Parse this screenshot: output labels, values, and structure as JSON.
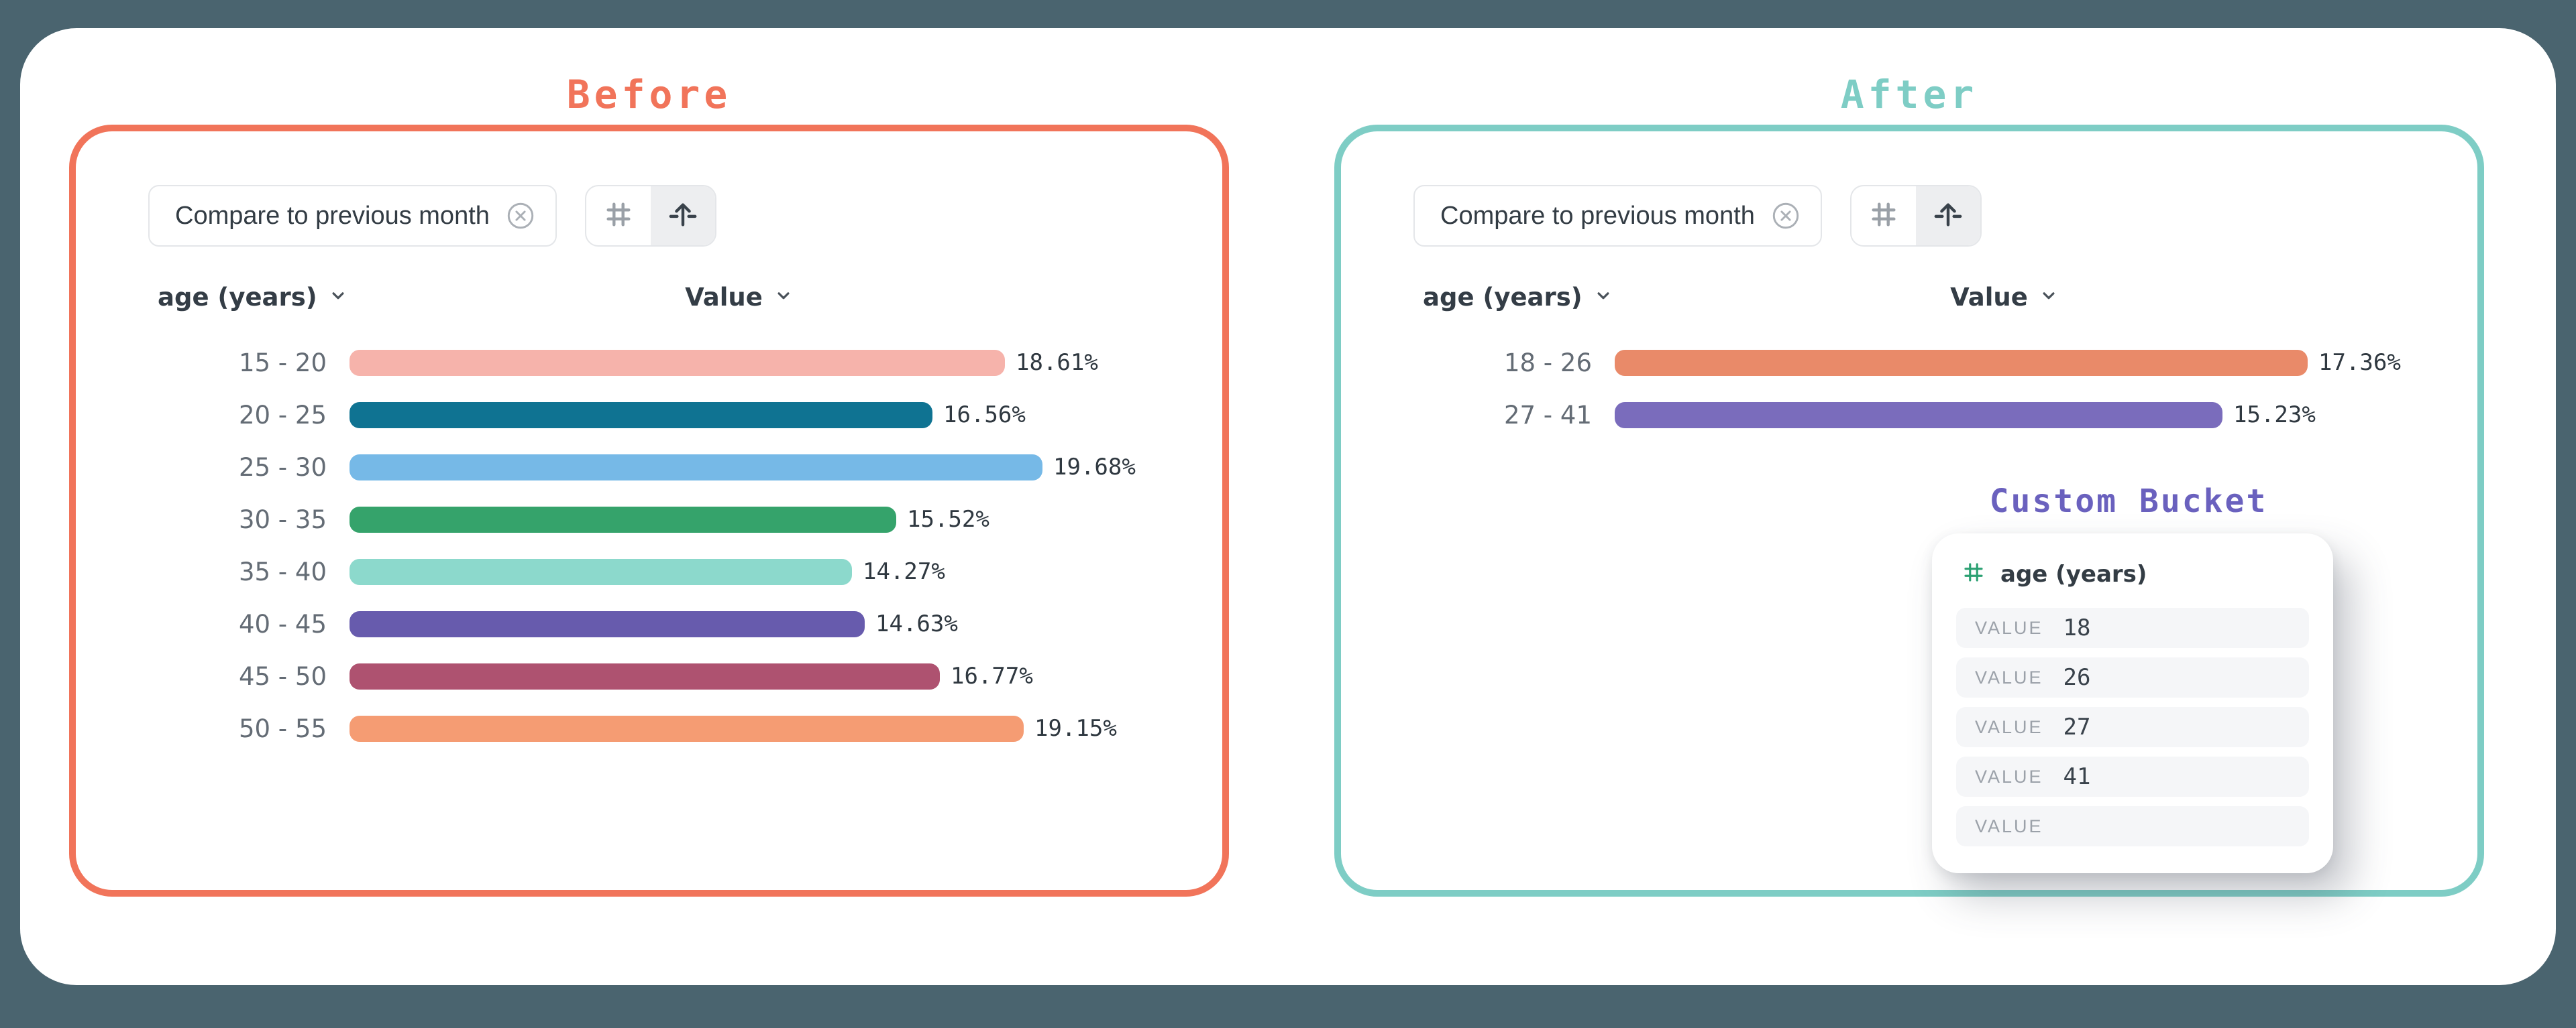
{
  "page": {
    "background": "#4A646F",
    "surface_color": "#FFFFFF"
  },
  "before": {
    "title": "Before",
    "accent": "#F1745A",
    "chip": {
      "label": "Compare to previous month",
      "close_icon": "circle-x-icon"
    },
    "toolbar": {
      "buttons": [
        {
          "icon": "hash-icon",
          "active": false
        },
        {
          "icon": "arrow-up-from-bar-icon",
          "active": true
        }
      ]
    },
    "columns": {
      "category": "age (years)",
      "value": "Value"
    },
    "chart": {
      "max_value": 19.68,
      "rows": [
        {
          "label": "15 - 20",
          "value": 18.61,
          "display": "18.61%",
          "color": "#F6B3AB"
        },
        {
          "label": "20 - 25",
          "value": 16.56,
          "display": "16.56%",
          "color": "#0F7392"
        },
        {
          "label": "25 - 30",
          "value": 19.68,
          "display": "19.68%",
          "color": "#76B9E7"
        },
        {
          "label": "30 - 35",
          "value": 15.52,
          "display": "15.52%",
          "color": "#35A36B"
        },
        {
          "label": "35 - 40",
          "value": 14.27,
          "display": "14.27%",
          "color": "#8CD9CC"
        },
        {
          "label": "40 - 45",
          "value": 14.63,
          "display": "14.63%",
          "color": "#675BAD"
        },
        {
          "label": "45 - 50",
          "value": 16.77,
          "display": "16.77%",
          "color": "#AE5270"
        },
        {
          "label": "50 - 55",
          "value": 19.15,
          "display": "19.15%",
          "color": "#F59C73"
        }
      ]
    }
  },
  "after": {
    "title": "After",
    "accent": "#7ECDC5",
    "chip": {
      "label": "Compare to previous month",
      "close_icon": "circle-x-icon"
    },
    "toolbar": {
      "buttons": [
        {
          "icon": "hash-icon",
          "active": false
        },
        {
          "icon": "arrow-up-from-bar-icon",
          "active": true
        }
      ]
    },
    "columns": {
      "category": "age (years)",
      "value": "Value"
    },
    "chart": {
      "max_value": 17.36,
      "rows": [
        {
          "label": "18 - 26",
          "value": 17.36,
          "display": "17.36%",
          "color": "#E98A69"
        },
        {
          "label": "27 - 41",
          "value": 15.23,
          "display": "15.23%",
          "color": "#7A6CBC"
        }
      ]
    },
    "custom_bucket": {
      "title": "Custom Bucket",
      "accent": "#6A61BE",
      "property": {
        "icon": "hash-icon",
        "icon_color": "#2CA173",
        "label": "age (years)"
      },
      "value_label": "VALUE",
      "fields": [
        {
          "value": "18"
        },
        {
          "value": "26"
        },
        {
          "value": "27"
        },
        {
          "value": "41"
        },
        {
          "value": ""
        }
      ]
    }
  },
  "chart_data": [
    {
      "type": "bar",
      "orientation": "horizontal",
      "title": "Before",
      "xlabel": "Value",
      "ylabel": "age (years)",
      "value_format": "percent",
      "categories": [
        "15 - 20",
        "20 - 25",
        "25 - 30",
        "30 - 35",
        "35 - 40",
        "40 - 45",
        "45 - 50",
        "50 - 55"
      ],
      "values": [
        18.61,
        16.56,
        19.68,
        15.52,
        14.27,
        14.63,
        16.77,
        19.15
      ]
    },
    {
      "type": "bar",
      "orientation": "horizontal",
      "title": "After",
      "xlabel": "Value",
      "ylabel": "age (years)",
      "value_format": "percent",
      "categories": [
        "18 - 26",
        "27 - 41"
      ],
      "values": [
        17.36,
        15.23
      ]
    }
  ]
}
